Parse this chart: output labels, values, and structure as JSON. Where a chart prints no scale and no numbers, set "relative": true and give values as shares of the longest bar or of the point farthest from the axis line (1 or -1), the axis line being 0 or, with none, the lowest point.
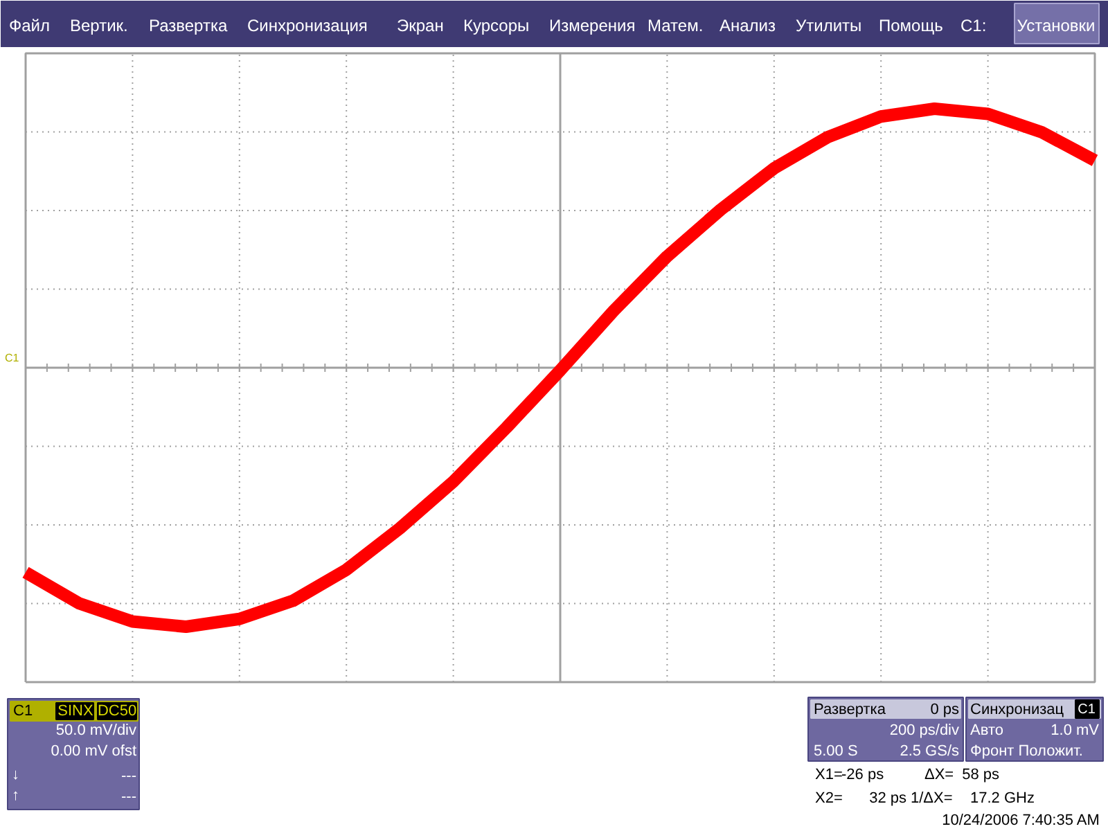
{
  "chart_data": {
    "type": "line",
    "relative": true,
    "categories": [
      null,
      null,
      null,
      null,
      null,
      null,
      null,
      null,
      null,
      null,
      null,
      null,
      null,
      null,
      null,
      null,
      null,
      null,
      null,
      null,
      null
    ],
    "grid": true,
    "line_style": "solid",
    "series": [
      {
        "color": "#ff0000",
        "values": [
          -0.79,
          -0.91,
          -0.98,
          -1.0,
          -0.97,
          -0.9,
          -0.78,
          -0.62,
          -0.44,
          -0.23,
          -0.01,
          0.22,
          0.43,
          0.61,
          0.77,
          0.89,
          0.97,
          1.0,
          0.98,
          0.91,
          0.8
        ]
      }
    ],
    "annotations": [
      "Файл",
      "Вертик.",
      "Развертка",
      "Синхронизация",
      "Экран",
      "Курсоры",
      "Измерения",
      "Матем.",
      "Анализ",
      "Утилиты",
      "Помощь",
      "C1:",
      "Установки",
      "C1",
      "C1",
      "SINX",
      "DC50",
      "50.0 mV/div",
      "0.00 mV ofst",
      "↓",
      "---",
      "↑",
      "---",
      "Развертка",
      "0 ps",
      "200 ps/div",
      "5.00 S",
      "2.5 GS/s",
      "Синхронизац",
      "C1",
      "Авто",
      "1.0 mV",
      "Фронт Положит.",
      "X1=",
      "-26 ps",
      "ΔX=",
      "58 ps",
      "X2=",
      "32 ps",
      "1/ΔX=",
      "17.2 GHz",
      "10/24/2006 7:40:35 AM"
    ]
  }
}
